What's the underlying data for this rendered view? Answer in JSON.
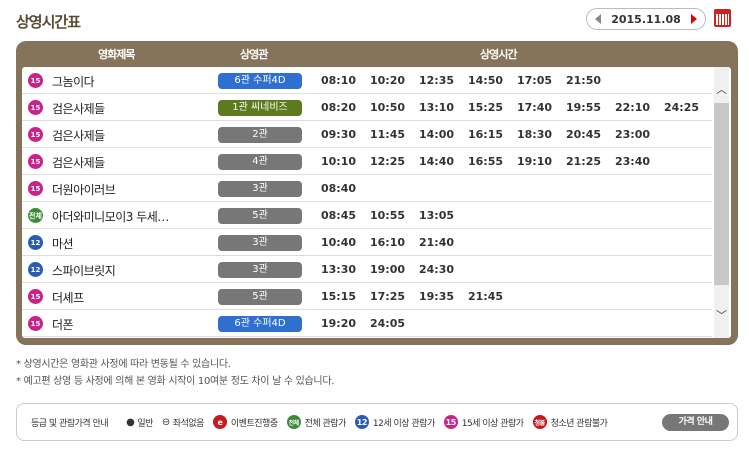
{
  "title": "상영시간표",
  "date": "2015.11.08",
  "headers": {
    "title": "영화제목",
    "theater": "상영관",
    "times": "상영시간"
  },
  "colors": {
    "r15": "#c8238a",
    "r12": "#2a5bb5",
    "rall": "#3a8a3a",
    "r18": "#c8191e",
    "blue": "#2f6fd0",
    "green": "#5c7a1e",
    "gray": "#777777",
    "panel": "#85735a"
  },
  "movies": [
    {
      "rating": "15",
      "title": "그놈이다",
      "theater": "6관 수퍼4D",
      "badge": "blue",
      "times": [
        "08:10",
        "10:20",
        "12:35",
        "14:50",
        "17:05",
        "21:50"
      ]
    },
    {
      "rating": "15",
      "title": "검은사제들",
      "theater": "1관 씨네비즈",
      "badge": "green",
      "times": [
        "08:20",
        "10:50",
        "13:10",
        "15:25",
        "17:40",
        "19:55",
        "22:10",
        "24:25"
      ]
    },
    {
      "rating": "15",
      "title": "검은사제들",
      "theater": "2관",
      "badge": "gray",
      "times": [
        "09:30",
        "11:45",
        "14:00",
        "16:15",
        "18:30",
        "20:45",
        "23:00"
      ]
    },
    {
      "rating": "15",
      "title": "검은사제들",
      "theater": "4관",
      "badge": "gray",
      "times": [
        "10:10",
        "12:25",
        "14:40",
        "16:55",
        "19:10",
        "21:25",
        "23:40"
      ]
    },
    {
      "rating": "15",
      "title": "더원아이러브",
      "theater": "3관",
      "badge": "gray",
      "times": [
        "08:40"
      ]
    },
    {
      "rating": "전체",
      "title": "아더와미니모이3 두세…",
      "theater": "5관",
      "badge": "gray",
      "times": [
        "08:45",
        "10:55",
        "13:05"
      ]
    },
    {
      "rating": "12",
      "title": "마션",
      "theater": "3관",
      "badge": "gray",
      "times": [
        "10:40",
        "16:10",
        "21:40"
      ]
    },
    {
      "rating": "12",
      "title": "스파이브릿지",
      "theater": "3관",
      "badge": "gray",
      "times": [
        "13:30",
        "19:00",
        "24:30"
      ]
    },
    {
      "rating": "15",
      "title": "더셰프",
      "theater": "5관",
      "badge": "gray",
      "times": [
        "15:15",
        "17:25",
        "19:35",
        "21:45"
      ]
    },
    {
      "rating": "15",
      "title": "더폰",
      "theater": "6관 수퍼4D",
      "badge": "blue",
      "times": [
        "19:20",
        "24:05"
      ]
    }
  ],
  "notes": [
    "* 상영시간은 영화관 사정에 따라 변동될 수 있습니다.",
    "* 예고편 상영 등 사정에 의해 본 영화 시작이 10여분 정도 차이 날 수 있습니다."
  ],
  "legend": {
    "label": "등급 및 관람가격 안내",
    "items": [
      {
        "icon": "●",
        "text": "일반",
        "kind": "dot"
      },
      {
        "icon": "⊖",
        "text": "좌석없음",
        "kind": "dot"
      },
      {
        "icon": "e",
        "text": "이벤트진행중",
        "kind": "r18"
      },
      {
        "icon": "전체",
        "text": "전체 관람가",
        "kind": "rall"
      },
      {
        "icon": "12",
        "text": "12세 이상 관람가",
        "kind": "r12"
      },
      {
        "icon": "15",
        "text": "15세 이상 관람가",
        "kind": "r15"
      },
      {
        "icon": "청불",
        "text": "청소년 관람불가",
        "kind": "r18"
      }
    ],
    "price_button": "가격 안내"
  }
}
